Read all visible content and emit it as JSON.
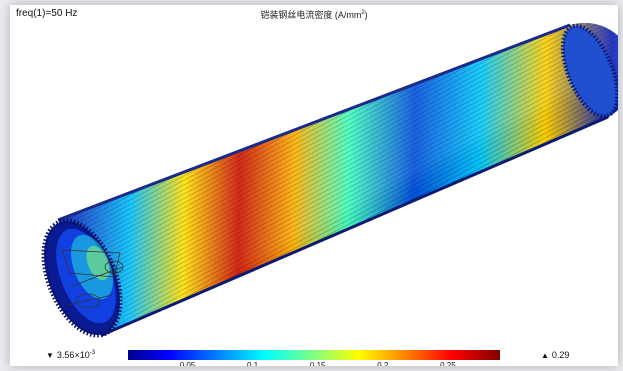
{
  "header": {
    "freq_label": "freq(1)=50 Hz",
    "title_text": "铠装钢丝电流密度 (A/mm",
    "title_sup": "2",
    "title_end": ")"
  },
  "colorbar": {
    "min_label": "3.56×10",
    "min_exp": "-3",
    "max_label": "0.29",
    "min_marker": "▼",
    "max_marker": "▲",
    "ticks": [
      "0.05",
      "0.1",
      "0.15",
      "0.2",
      "0.25"
    ],
    "colormap": [
      "#00008f",
      "#0000ff",
      "#0080ff",
      "#00ffff",
      "#80ff80",
      "#ffff00",
      "#ff8000",
      "#ff0000",
      "#800000"
    ]
  }
}
